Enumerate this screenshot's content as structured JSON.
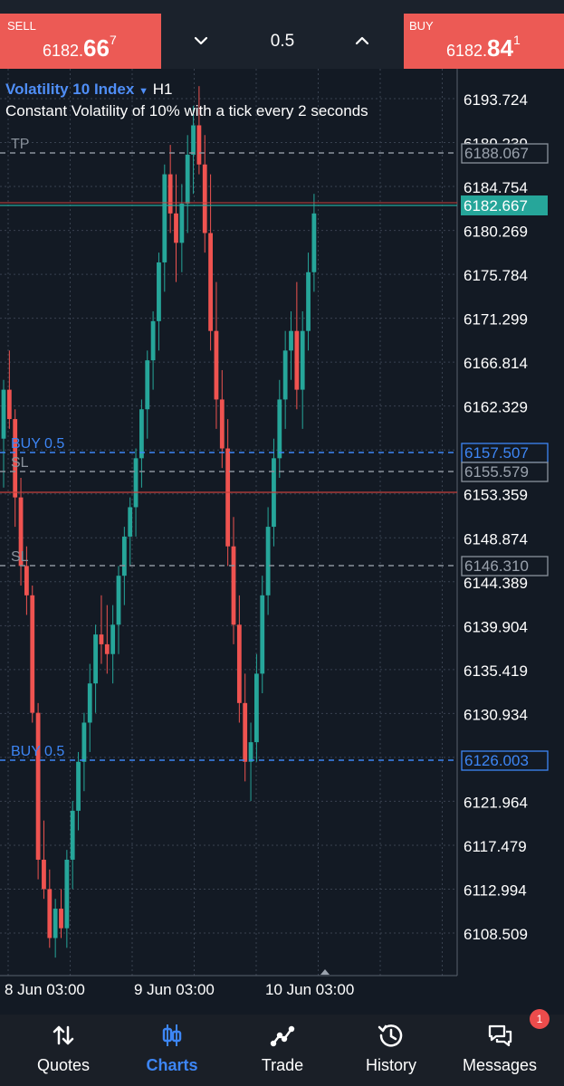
{
  "header": {
    "sell": {
      "label": "SELL",
      "price_small": "6182.",
      "price_big": "66",
      "price_sup": "7"
    },
    "buy": {
      "label": "BUY",
      "price_small": "6182.",
      "price_big": "84",
      "price_sup": "1"
    },
    "volume": "0.5",
    "colors": {
      "sell": "#ec5a55",
      "buy": "#ec5a55",
      "bar": "#1b222c"
    }
  },
  "chart_info": {
    "symbol": "Volatility 10 Index",
    "timeframe": "H1",
    "description": "Constant Volatility of 10% with a tick every 2 seconds"
  },
  "chart_data": {
    "type": "candlestick",
    "timeframe": "H1",
    "y_axis": {
      "ticks": [
        "6193.724",
        "6189.239",
        "6184.754",
        "6180.269",
        "6175.784",
        "6171.299",
        "6166.814",
        "6162.329",
        "6157.844",
        "6153.359",
        "6148.874",
        "6144.389",
        "6139.904",
        "6135.419",
        "6130.934",
        "6126.449",
        "6121.964",
        "6117.479",
        "6112.994",
        "6108.509"
      ]
    },
    "x_axis": {
      "ticks": [
        "8 Jun 03:00",
        "9 Jun 03:00",
        "10 Jun 03:00"
      ]
    },
    "candles": [
      [
        6159,
        6165,
        6154,
        6164
      ],
      [
        6164,
        6168,
        6160,
        6161
      ],
      [
        6161,
        6162,
        6150,
        6153
      ],
      [
        6153,
        6155,
        6144,
        6146
      ],
      [
        6146,
        6148,
        6141,
        6143
      ],
      [
        6143,
        6144,
        6130,
        6131
      ],
      [
        6131,
        6132,
        6114,
        6116
      ],
      [
        6116,
        6120,
        6112,
        6113
      ],
      [
        6113,
        6115,
        6107,
        6108
      ],
      [
        6108,
        6112,
        6106,
        6111
      ],
      [
        6111,
        6113,
        6108,
        6109
      ],
      [
        6109,
        6117,
        6107,
        6116
      ],
      [
        6116,
        6122,
        6113,
        6121
      ],
      [
        6121,
        6127,
        6119,
        6126
      ],
      [
        6126,
        6131,
        6123,
        6130
      ],
      [
        6130,
        6136,
        6127,
        6134
      ],
      [
        6134,
        6140,
        6131,
        6139
      ],
      [
        6139,
        6143,
        6136,
        6138
      ],
      [
        6138,
        6142,
        6135,
        6137
      ],
      [
        6137,
        6142,
        6134,
        6140
      ],
      [
        6140,
        6146,
        6137,
        6145
      ],
      [
        6145,
        6150,
        6142,
        6149
      ],
      [
        6149,
        6153,
        6146,
        6152
      ],
      [
        6152,
        6158,
        6149,
        6157
      ],
      [
        6157,
        6163,
        6154,
        6162
      ],
      [
        6162,
        6168,
        6159,
        6167
      ],
      [
        6167,
        6172,
        6164,
        6171
      ],
      [
        6171,
        6178,
        6168,
        6177
      ],
      [
        6177,
        6187,
        6174,
        6186
      ],
      [
        6186,
        6189,
        6180,
        6182
      ],
      [
        6182,
        6186,
        6175,
        6179
      ],
      [
        6179,
        6185,
        6176,
        6183
      ],
      [
        6183,
        6190,
        6180,
        6188
      ],
      [
        6188,
        6193,
        6184,
        6191
      ],
      [
        6191,
        6195,
        6186,
        6187
      ],
      [
        6187,
        6190,
        6178,
        6180
      ],
      [
        6180,
        6186,
        6168,
        6170
      ],
      [
        6170,
        6175,
        6160,
        6163
      ],
      [
        6163,
        6166,
        6156,
        6158
      ],
      [
        6158,
        6161,
        6146,
        6148
      ],
      [
        6148,
        6151,
        6138,
        6140
      ],
      [
        6140,
        6143,
        6130,
        6132
      ],
      [
        6132,
        6135,
        6124,
        6126
      ],
      [
        6126,
        6130,
        6122,
        6128
      ],
      [
        6128,
        6137,
        6126,
        6135
      ],
      [
        6135,
        6145,
        6133,
        6143
      ],
      [
        6143,
        6152,
        6141,
        6150
      ],
      [
        6150,
        6159,
        6148,
        6157
      ],
      [
        6157,
        6165,
        6155,
        6163
      ],
      [
        6163,
        6170,
        6160,
        6168
      ],
      [
        6168,
        6172,
        6165,
        6170
      ],
      [
        6170,
        6175,
        6162,
        6164
      ],
      [
        6164,
        6172,
        6160,
        6170
      ],
      [
        6170,
        6178,
        6168,
        6176
      ],
      [
        6176,
        6184,
        6174,
        6182
      ]
    ],
    "bull_color": "#26a69a",
    "bear_color": "#ef5350",
    "lines": [
      {
        "label": "TP",
        "price_tag": "6188.067",
        "style": "dashed",
        "color": "#8a929c"
      },
      {
        "price_tag": "6182.667",
        "style": "solid",
        "color": "#26a69a"
      },
      {
        "label": "BUY 0.5",
        "price_tag": "6157.507",
        "style": "dashed",
        "color": "#3d86f5"
      },
      {
        "label": "SL",
        "price_tag": "6155.579",
        "style": "dashed",
        "color": "#8a929c"
      },
      {
        "style": "solid",
        "color": "#c6403c"
      },
      {
        "label": "SL",
        "price_tag": "6146.310",
        "style": "dashed",
        "color": "#8a929c"
      },
      {
        "label": "BUY 0.5",
        "price_tag": "6126.003",
        "style": "dashed",
        "color": "#3d86f5"
      }
    ],
    "grid": true
  },
  "nav": {
    "items": [
      {
        "label": "Quotes",
        "icon": "arrows-updown-icon"
      },
      {
        "label": "Charts",
        "icon": "candles-icon",
        "active": true
      },
      {
        "label": "Trade",
        "icon": "trend-icon"
      },
      {
        "label": "History",
        "icon": "history-icon"
      },
      {
        "label": "Messages",
        "icon": "chat-icon",
        "badge": "1"
      }
    ]
  }
}
